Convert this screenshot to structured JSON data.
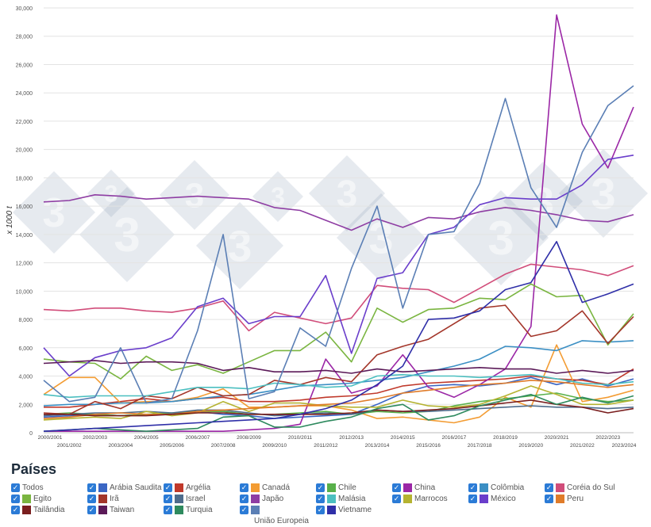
{
  "chart_data": {
    "type": "line",
    "ylabel": "x 1000 t",
    "ylim": [
      0,
      30000
    ],
    "yticks": [
      0,
      2000,
      4000,
      6000,
      8000,
      10000,
      12000,
      14000,
      16000,
      18000,
      20000,
      22000,
      24000,
      26000,
      28000,
      30000
    ],
    "ytick_labels": [
      "0",
      "2,000",
      "4,000",
      "6,000",
      "8,000",
      "10,000",
      "12,000",
      "14,000",
      "16,000",
      "18,000",
      "20,000",
      "22,000",
      "24,000",
      "26,000",
      "28,000",
      "30,000"
    ],
    "grid": true,
    "categories": [
      "2000/2001",
      "2001/2002",
      "2002/2003",
      "2003/2004",
      "2004/2005",
      "2005/2006",
      "2006/2007",
      "2007/2008",
      "2008/2009",
      "2009/2010",
      "2010/2011",
      "2011/2012",
      "2012/2013",
      "2013/2014",
      "2014/2015",
      "2015/2016",
      "2016/2017",
      "2017/2018",
      "2018/2019",
      "2019/2020",
      "2020/2021",
      "2021/2022",
      "2022/2023",
      "2023/2024"
    ],
    "series": [
      {
        "name": "Arábia Saudita",
        "color": "#3a66c4",
        "values": [
          1100,
          1200,
          1300,
          1200,
          1300,
          1300,
          1500,
          1300,
          1200,
          1000,
          1100,
          1200,
          1300,
          2000,
          2800,
          3300,
          3400,
          3300,
          3500,
          3900,
          3400,
          3800,
          3300,
          3800
        ]
      },
      {
        "name": "Argélia",
        "color": "#c0392b",
        "values": [
          1800,
          1800,
          2000,
          2200,
          2400,
          2200,
          2400,
          2500,
          2200,
          2200,
          2300,
          2500,
          2600,
          2800,
          3300,
          3500,
          3600,
          3700,
          3800,
          4000,
          3800,
          3700,
          3400,
          4500
        ]
      },
      {
        "name": "Canadá",
        "color": "#f39c33",
        "values": [
          2700,
          3900,
          3900,
          2100,
          2200,
          2200,
          2500,
          3100,
          1800,
          1800,
          1900,
          1900,
          1600,
          1000,
          1100,
          900,
          700,
          1100,
          2500,
          1800,
          6200,
          2200,
          2500,
          3000
        ]
      },
      {
        "name": "Chile",
        "color": "#58b04a",
        "values": [
          1300,
          1400,
          1300,
          1200,
          1300,
          1400,
          1500,
          1500,
          1300,
          1300,
          1400,
          1500,
          1300,
          1500,
          1400,
          1500,
          1900,
          2200,
          2400,
          2600,
          2800,
          2400,
          2200,
          2300
        ]
      },
      {
        "name": "China",
        "color": "#9b27a6",
        "values": [
          100,
          100,
          100,
          100,
          100,
          100,
          100,
          100,
          200,
          300,
          600,
          5200,
          2800,
          3300,
          5500,
          3200,
          2500,
          3400,
          4500,
          7500,
          29500,
          21800,
          18700,
          23000
        ]
      },
      {
        "name": "Colômbia",
        "color": "#3b8fc4",
        "values": [
          1900,
          2000,
          2000,
          2100,
          2100,
          2200,
          2400,
          2600,
          2700,
          3000,
          3300,
          3400,
          3500,
          3700,
          3900,
          4300,
          4700,
          5200,
          6100,
          6000,
          5800,
          6500,
          6400,
          6500
        ]
      },
      {
        "name": "Coréia do Sul",
        "color": "#d14d7a",
        "values": [
          8700,
          8600,
          8800,
          8800,
          8600,
          8500,
          8800,
          9300,
          7200,
          8500,
          8100,
          7700,
          8100,
          10400,
          10200,
          10100,
          9200,
          10200,
          11200,
          11900,
          11700,
          11500,
          11100,
          11800
        ]
      },
      {
        "name": "Egito",
        "color": "#7ab540",
        "values": [
          5200,
          5000,
          4900,
          3800,
          5400,
          4400,
          4800,
          4200,
          5000,
          5800,
          5800,
          7100,
          5000,
          8800,
          7800,
          8700,
          8800,
          9500,
          9400,
          10500,
          9600,
          9700,
          6200,
          8400
        ]
      },
      {
        "name": "Irã",
        "color": "#a3362a",
        "values": [
          1400,
          1300,
          2200,
          1700,
          2600,
          2400,
          3200,
          2600,
          2700,
          3700,
          3400,
          3900,
          3600,
          5500,
          6100,
          6600,
          7700,
          8800,
          9000,
          6800,
          7200,
          8600,
          6300,
          8200
        ]
      },
      {
        "name": "Israel",
        "color": "#4e6c8c",
        "values": [
          1200,
          1300,
          1400,
          1400,
          1500,
          1400,
          1600,
          1600,
          1400,
          1200,
          1300,
          1400,
          1300,
          1600,
          1500,
          1500,
          1600,
          1700,
          1800,
          1900,
          1800,
          1800,
          1700,
          1800
        ]
      },
      {
        "name": "Japão",
        "color": "#8e3da3",
        "values": [
          16300,
          16400,
          16800,
          16700,
          16500,
          16600,
          16700,
          16600,
          16500,
          15900,
          15700,
          15000,
          14300,
          15100,
          14500,
          15200,
          15100,
          15600,
          15900,
          15700,
          15400,
          15000,
          14900,
          15400
        ]
      },
      {
        "name": "Malásia",
        "color": "#4bbfc0",
        "values": [
          2700,
          2500,
          2600,
          2600,
          2600,
          2900,
          3200,
          3200,
          3100,
          3500,
          3400,
          3200,
          3300,
          4000,
          4100,
          4000,
          4000,
          3900,
          4000,
          4100,
          3800,
          3500,
          3400,
          3600
        ]
      },
      {
        "name": "Marrocos",
        "color": "#b5b331",
        "values": [
          900,
          1000,
          1100,
          1000,
          1500,
          1200,
          1400,
          2200,
          1500,
          2100,
          2100,
          1900,
          1800,
          1800,
          2300,
          1900,
          1800,
          2000,
          2600,
          3300,
          2700,
          2000,
          2000,
          2300
        ]
      },
      {
        "name": "México",
        "color": "#6a3ecb",
        "values": [
          6000,
          4000,
          5300,
          5800,
          6000,
          6700,
          8900,
          9500,
          7700,
          8200,
          8200,
          11100,
          5600,
          10900,
          11300,
          14000,
          14500,
          16100,
          16600,
          16500,
          16500,
          17500,
          19300,
          19600
        ]
      },
      {
        "name": "Peru",
        "color": "#e07c2a",
        "values": [
          1000,
          1100,
          1300,
          1400,
          1300,
          1300,
          1500,
          1600,
          1700,
          1800,
          1900,
          2000,
          2100,
          2400,
          2800,
          3000,
          3200,
          3400,
          3500,
          3700,
          3600,
          3400,
          3200,
          3400
        ]
      },
      {
        "name": "Tailândia",
        "color": "#7a1e1e",
        "values": [
          1300,
          1300,
          1200,
          1200,
          1200,
          1300,
          1400,
          1400,
          1300,
          1300,
          1300,
          1300,
          1400,
          1600,
          1500,
          1600,
          1700,
          1900,
          2100,
          2300,
          2000,
          1800,
          1400,
          1700
        ]
      },
      {
        "name": "Taiwan",
        "color": "#5b1a58",
        "values": [
          4900,
          5000,
          5100,
          4900,
          5000,
          5000,
          4900,
          4400,
          4600,
          4300,
          4300,
          4400,
          4200,
          4500,
          4300,
          4400,
          4500,
          4600,
          4500,
          4500,
          4200,
          4400,
          4200,
          4400
        ]
      },
      {
        "name": "Turquia",
        "color": "#2e8a5e",
        "values": [
          100,
          200,
          300,
          200,
          100,
          200,
          300,
          1100,
          1200,
          400,
          400,
          800,
          1100,
          1700,
          2000,
          900,
          1200,
          1900,
          2300,
          2700,
          2000,
          2500,
          2100,
          2600
        ]
      },
      {
        "name": "União Europeia",
        "color": "#5b7fb5",
        "values": [
          3700,
          2200,
          2500,
          6000,
          2100,
          2400,
          7200,
          14000,
          2400,
          2900,
          7400,
          6100,
          11600,
          16000,
          8800,
          14000,
          14200,
          17600,
          23600,
          17300,
          14500,
          19800,
          23100,
          24500
        ]
      },
      {
        "name": "Vietname",
        "color": "#2f2fa8",
        "values": [
          100,
          200,
          300,
          400,
          500,
          600,
          700,
          800,
          900,
          1000,
          1300,
          1700,
          2300,
          3400,
          4700,
          8000,
          8100,
          8600,
          10100,
          10600,
          13500,
          9200,
          9800,
          10500
        ]
      }
    ],
    "legend_title": "Países",
    "legend": [
      {
        "label": "Todos",
        "swatch": ""
      },
      {
        "label": "Arábia Saudita",
        "swatch": "#3a66c4"
      },
      {
        "label": "Argélia",
        "swatch": "#c0392b"
      },
      {
        "label": "Canadá",
        "swatch": "#f39c33"
      },
      {
        "label": "Chile",
        "swatch": "#58b04a"
      },
      {
        "label": "China",
        "swatch": "#9b27a6"
      },
      {
        "label": "Colômbia",
        "swatch": "#3b8fc4"
      },
      {
        "label": "Coréia do Sul",
        "swatch": "#d14d7a"
      },
      {
        "label": "Egito",
        "swatch": "#7ab540"
      },
      {
        "label": "Irã",
        "swatch": "#a3362a"
      },
      {
        "label": "Israel",
        "swatch": "#4e6c8c"
      },
      {
        "label": "Japão",
        "swatch": "#8e3da3"
      },
      {
        "label": "Malásia",
        "swatch": "#4bbfc0"
      },
      {
        "label": "Marrocos",
        "swatch": "#b5b331"
      },
      {
        "label": "México",
        "swatch": "#6a3ecb"
      },
      {
        "label": "Peru",
        "swatch": "#e07c2a"
      },
      {
        "label": "Tailândia",
        "swatch": "#7a1e1e"
      },
      {
        "label": "Taiwan",
        "swatch": "#5b1a58"
      },
      {
        "label": "Turquia",
        "swatch": "#2e8a5e"
      },
      {
        "label": "",
        "swatch": "#5b7fb5"
      },
      {
        "label": "Vietname",
        "swatch": "#2f2fa8"
      }
    ],
    "legend_extra_label": "União Europeia",
    "watermark": "3"
  }
}
